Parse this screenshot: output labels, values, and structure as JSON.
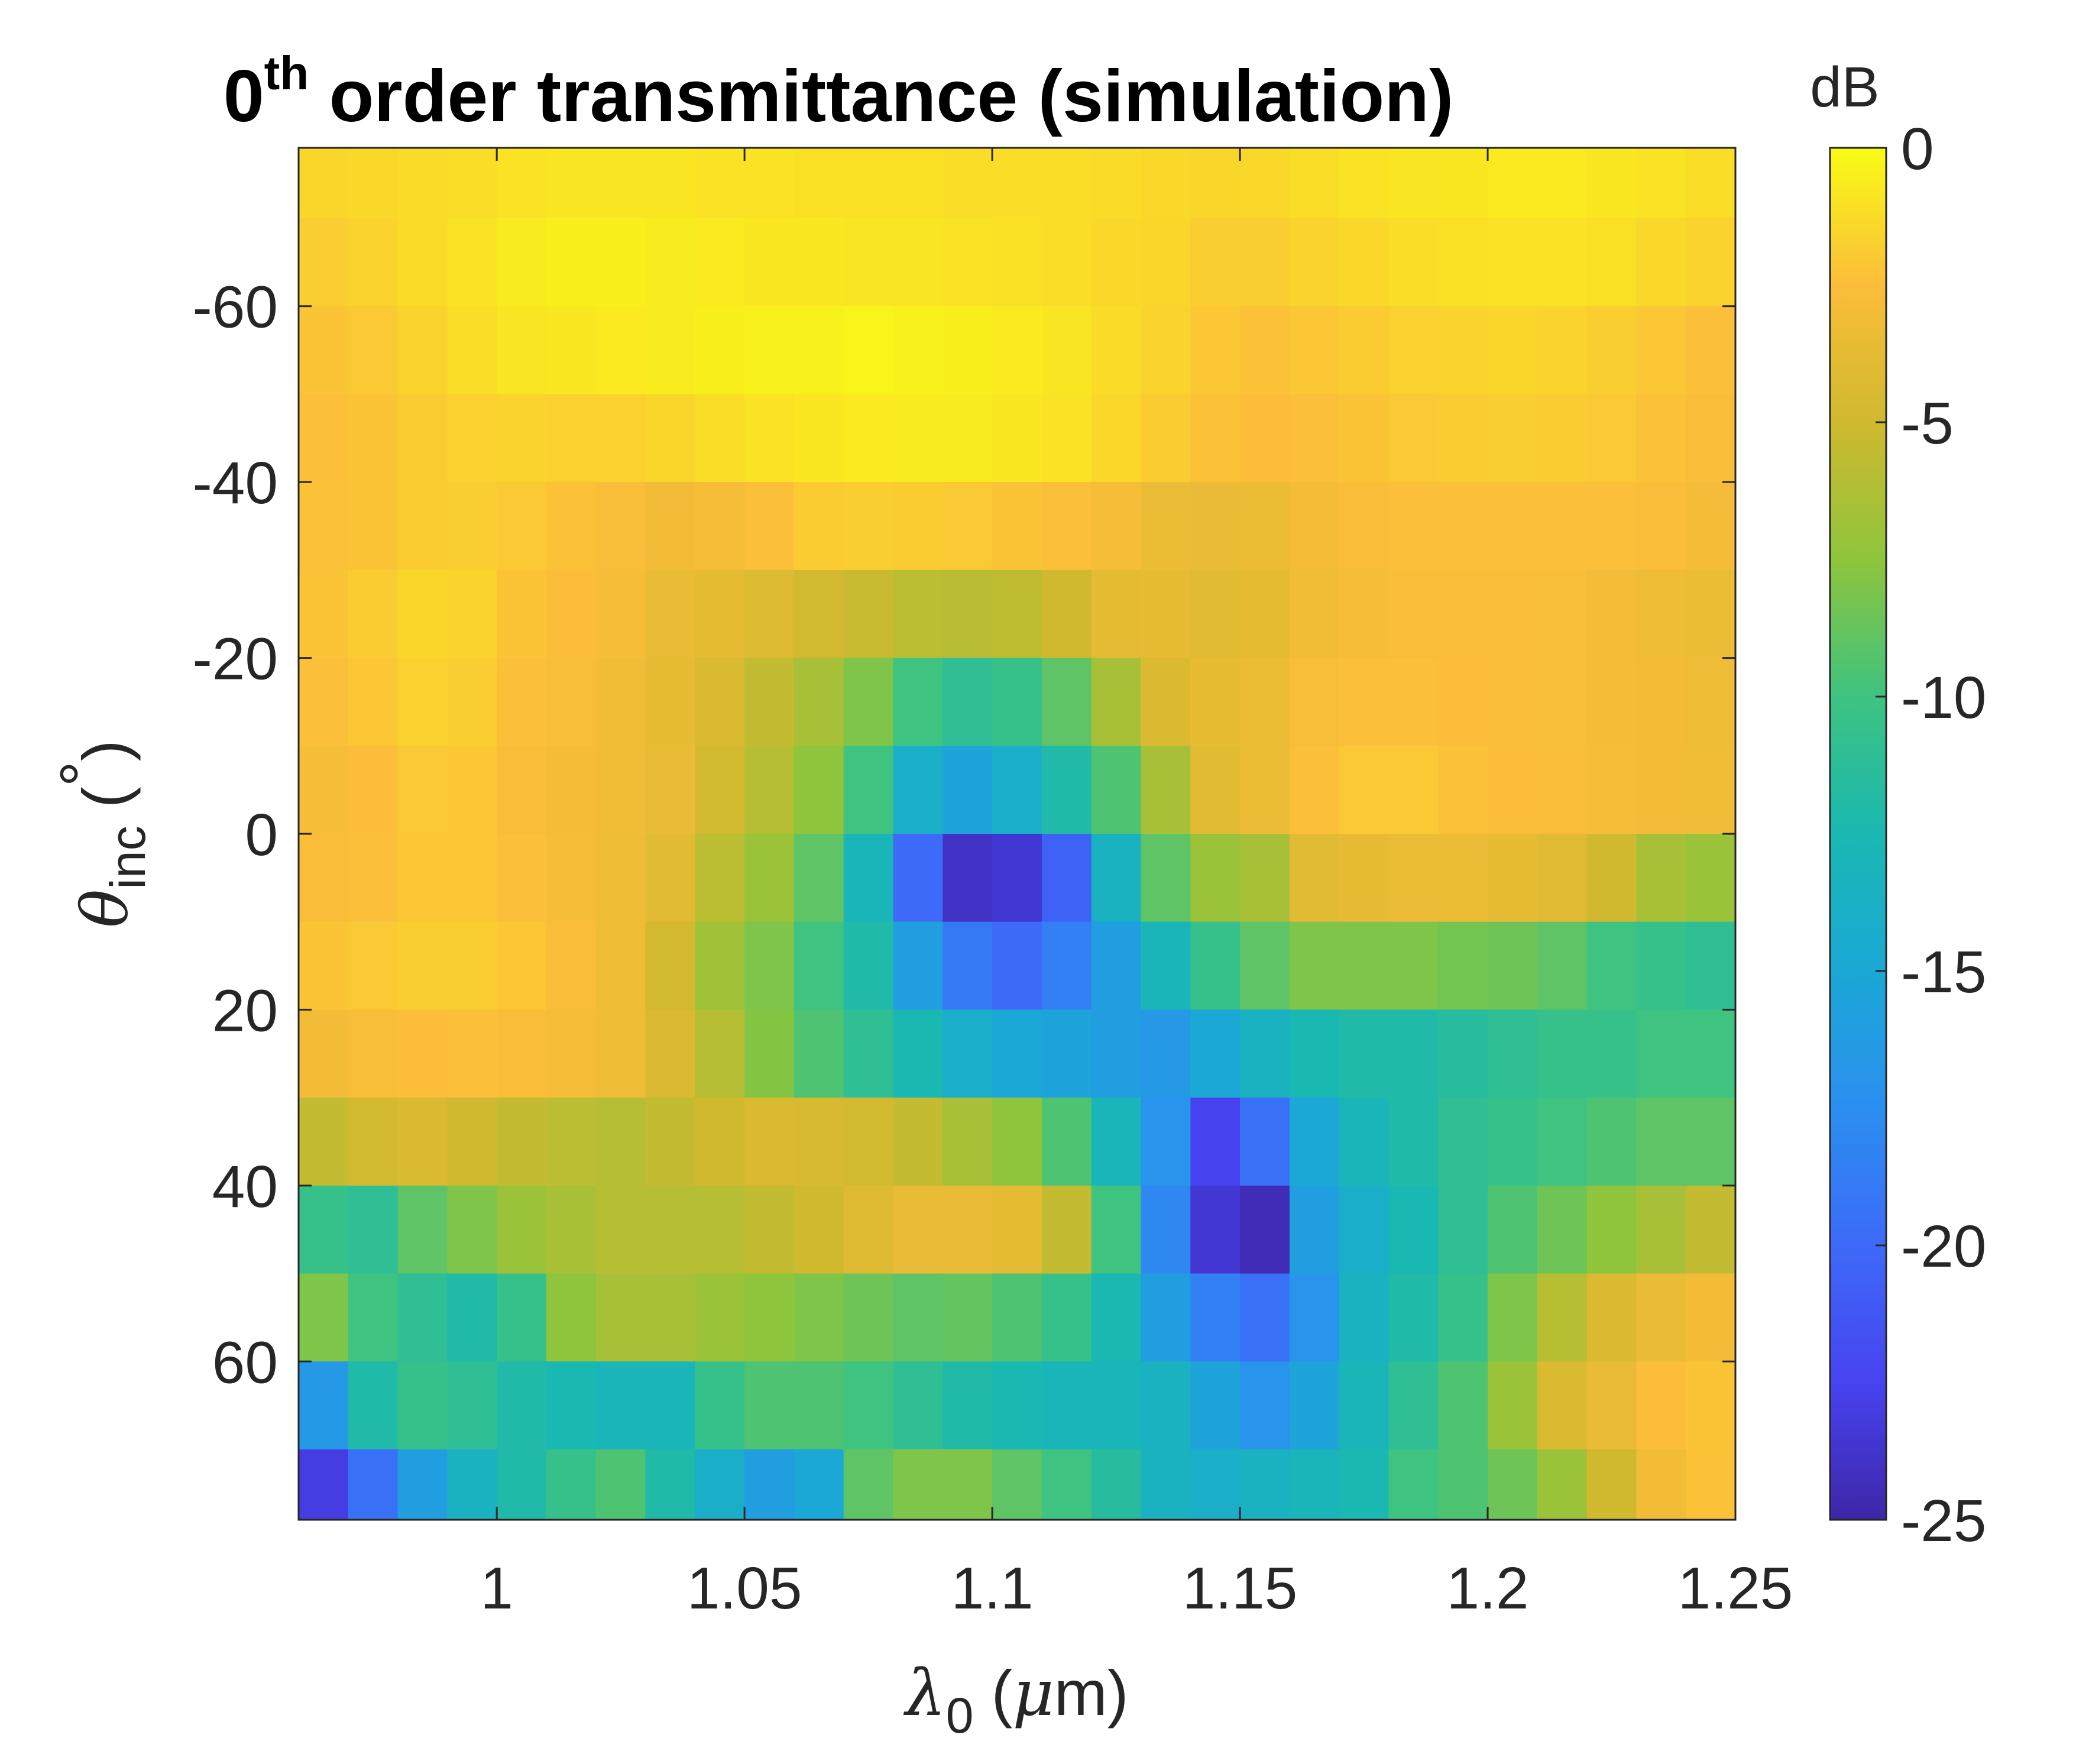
{
  "chart_data": {
    "type": "heatmap",
    "title": {
      "prefix": "0",
      "superscript": "th",
      "rest": " order transmittance (simulation)"
    },
    "xlabel": {
      "symbol": "λ",
      "subscript": "0",
      "unit_open": " (",
      "unit_symbol": "μ",
      "unit_rest": "m)"
    },
    "ylabel": {
      "symbol": "θ",
      "subscript": "inc",
      "unit_open": " (",
      "unit_symbol": "°",
      "unit_close": ")"
    },
    "colorbar_label": "dB",
    "xlim": [
      0.96,
      1.25
    ],
    "ylim": [
      -78,
      78
    ],
    "y_reversed": true,
    "clim": [
      -25,
      0
    ],
    "colormap": "parula",
    "x_ticks": [
      1.0,
      1.05,
      1.1,
      1.15,
      1.2,
      1.25
    ],
    "x_tick_labels": [
      "1",
      "1.05",
      "1.1",
      "1.15",
      "1.2",
      "1.25"
    ],
    "y_ticks": [
      -60,
      -40,
      -20,
      0,
      20,
      40,
      60
    ],
    "y_tick_labels": [
      "-60",
      "-40",
      "-20",
      "0",
      "20",
      "40",
      "60"
    ],
    "colorbar_ticks": [
      0,
      -5,
      -10,
      -15,
      -20,
      -25
    ],
    "colorbar_tick_labels": [
      "0",
      "-5",
      "-10",
      "-15",
      "-20",
      "-25"
    ],
    "grid": {
      "x": [
        0.965,
        0.975,
        0.985,
        0.995,
        1.005,
        1.015,
        1.025,
        1.035,
        1.045,
        1.055,
        1.065,
        1.075,
        1.085,
        1.095,
        1.105,
        1.115,
        1.125,
        1.135,
        1.145,
        1.155,
        1.165,
        1.175,
        1.185,
        1.195,
        1.205,
        1.215,
        1.225,
        1.235,
        1.245
      ],
      "y": [
        -75,
        -65,
        -55,
        -45,
        -35,
        -25,
        -15,
        -5,
        5,
        15,
        25,
        35,
        45,
        55,
        65,
        75
      ],
      "z": [
        [
          -1.5,
          -1.4,
          -1.3,
          -1.2,
          -1.0,
          -0.9,
          -0.9,
          -0.9,
          -1.0,
          -1.0,
          -1.1,
          -1.1,
          -1.1,
          -1.2,
          -1.2,
          -1.2,
          -1.3,
          -1.4,
          -1.5,
          -1.4,
          -1.2,
          -1.0,
          -0.9,
          -0.8,
          -0.7,
          -0.7,
          -0.8,
          -1.0,
          -1.2
        ],
        [
          -1.8,
          -1.6,
          -1.3,
          -1.0,
          -0.6,
          -0.5,
          -0.5,
          -0.6,
          -0.7,
          -0.8,
          -0.8,
          -0.9,
          -0.9,
          -1.0,
          -1.1,
          -1.2,
          -1.4,
          -1.5,
          -1.8,
          -1.8,
          -1.6,
          -1.4,
          -1.2,
          -1.1,
          -1.0,
          -1.0,
          -1.1,
          -1.4,
          -1.6
        ],
        [
          -2.2,
          -2.0,
          -1.6,
          -1.2,
          -0.9,
          -0.8,
          -0.7,
          -0.6,
          -0.5,
          -0.4,
          -0.4,
          -0.3,
          -0.4,
          -0.5,
          -0.7,
          -0.9,
          -1.3,
          -1.6,
          -2.1,
          -2.3,
          -2.1,
          -1.9,
          -1.7,
          -1.6,
          -1.5,
          -1.6,
          -1.8,
          -2.1,
          -2.4
        ],
        [
          -2.4,
          -2.2,
          -1.9,
          -1.7,
          -1.6,
          -1.7,
          -1.7,
          -1.5,
          -1.2,
          -1.0,
          -0.8,
          -0.7,
          -0.6,
          -0.6,
          -0.8,
          -1.0,
          -1.4,
          -1.9,
          -2.3,
          -2.5,
          -2.4,
          -2.2,
          -2.0,
          -1.9,
          -1.8,
          -1.9,
          -2.0,
          -2.3,
          -2.6
        ],
        [
          -2.3,
          -2.2,
          -1.9,
          -1.8,
          -2.0,
          -2.3,
          -2.7,
          -3.0,
          -2.8,
          -2.4,
          -1.9,
          -1.8,
          -1.9,
          -2.0,
          -2.2,
          -2.4,
          -2.8,
          -3.3,
          -3.5,
          -3.3,
          -2.9,
          -2.6,
          -2.4,
          -2.4,
          -2.4,
          -2.4,
          -2.4,
          -2.6,
          -2.9
        ],
        [
          -2.2,
          -1.9,
          -1.5,
          -1.6,
          -2.2,
          -2.5,
          -2.8,
          -3.5,
          -3.8,
          -4.3,
          -4.8,
          -5.3,
          -5.8,
          -5.9,
          -5.6,
          -5.0,
          -3.8,
          -3.6,
          -4.0,
          -3.8,
          -3.1,
          -2.8,
          -2.6,
          -2.6,
          -2.6,
          -2.7,
          -2.9,
          -3.2,
          -3.4
        ],
        [
          -2.4,
          -2.1,
          -1.7,
          -1.8,
          -2.4,
          -2.7,
          -3.1,
          -3.6,
          -4.5,
          -5.5,
          -6.5,
          -8.0,
          -10.0,
          -11.0,
          -10.5,
          -9.0,
          -6.5,
          -4.5,
          -3.6,
          -3.4,
          -2.7,
          -2.4,
          -2.4,
          -2.5,
          -2.6,
          -2.7,
          -2.9,
          -3.0,
          -3.2
        ],
        [
          -2.8,
          -2.5,
          -2.0,
          -2.1,
          -2.6,
          -2.9,
          -3.1,
          -3.5,
          -4.8,
          -6.0,
          -7.5,
          -10.0,
          -14.0,
          -15.5,
          -14.0,
          -12.0,
          -9.5,
          -6.5,
          -4.0,
          -3.3,
          -2.4,
          -2.0,
          -2.0,
          -2.3,
          -2.5,
          -2.6,
          -2.8,
          -3.0,
          -3.1
        ],
        [
          -2.6,
          -2.4,
          -2.1,
          -2.1,
          -2.4,
          -2.8,
          -3.2,
          -4.0,
          -5.8,
          -7.0,
          -9.0,
          -13.0,
          -20.0,
          -24.0,
          -23.5,
          -20.5,
          -13.5,
          -9.0,
          -7.0,
          -6.5,
          -4.0,
          -3.6,
          -3.3,
          -3.4,
          -3.6,
          -4.0,
          -5.0,
          -6.5,
          -7.0
        ],
        [
          -2.2,
          -2.0,
          -1.8,
          -1.8,
          -2.1,
          -2.6,
          -3.2,
          -4.8,
          -6.8,
          -8.0,
          -10.0,
          -12.0,
          -16.0,
          -19.0,
          -20.0,
          -18.5,
          -16.0,
          -13.0,
          -10.5,
          -9.0,
          -8.0,
          -8.0,
          -8.0,
          -8.3,
          -8.5,
          -9.0,
          -10.0,
          -10.5,
          -11.0
        ],
        [
          -3.0,
          -2.7,
          -2.5,
          -2.4,
          -2.6,
          -2.8,
          -3.2,
          -4.4,
          -6.0,
          -7.8,
          -9.5,
          -11.0,
          -12.5,
          -14.0,
          -15.0,
          -15.5,
          -16.0,
          -16.5,
          -15.0,
          -13.5,
          -12.5,
          -12.0,
          -12.0,
          -11.5,
          -11.0,
          -10.5,
          -10.5,
          -10.0,
          -10.0
        ],
        [
          -5.5,
          -4.8,
          -4.5,
          -5.0,
          -5.5,
          -5.8,
          -6.0,
          -5.5,
          -5.0,
          -4.5,
          -4.6,
          -4.8,
          -5.5,
          -6.5,
          -7.5,
          -9.5,
          -13.0,
          -17.0,
          -22.5,
          -19.5,
          -15.0,
          -13.0,
          -12.0,
          -11.0,
          -10.5,
          -10.0,
          -9.5,
          -9.0,
          -9.0
        ],
        [
          -10.5,
          -11.0,
          -9.0,
          -8.0,
          -7.0,
          -6.5,
          -6.0,
          -6.0,
          -6.0,
          -5.5,
          -5.0,
          -4.2,
          -3.5,
          -3.5,
          -3.8,
          -5.5,
          -10.0,
          -18.0,
          -23.5,
          -24.5,
          -16.0,
          -14.0,
          -12.5,
          -11.0,
          -9.5,
          -8.5,
          -7.5,
          -6.5,
          -5.5
        ],
        [
          -8.0,
          -10.0,
          -11.0,
          -12.0,
          -10.5,
          -7.5,
          -6.5,
          -6.5,
          -7.0,
          -7.5,
          -8.0,
          -8.5,
          -9.0,
          -8.8,
          -9.5,
          -10.5,
          -12.5,
          -16.0,
          -18.5,
          -19.5,
          -17.0,
          -13.5,
          -12.0,
          -10.5,
          -8.0,
          -6.0,
          -4.5,
          -3.5,
          -3.0
        ],
        [
          -16.5,
          -12.0,
          -10.5,
          -11.0,
          -12.0,
          -12.5,
          -13.0,
          -13.0,
          -10.5,
          -9.5,
          -9.5,
          -10.0,
          -11.0,
          -12.0,
          -12.5,
          -13.0,
          -13.0,
          -13.5,
          -15.5,
          -17.0,
          -15.5,
          -13.0,
          -11.0,
          -9.5,
          -7.0,
          -4.5,
          -3.5,
          -2.5,
          -2.2
        ],
        [
          -23.0,
          -19.5,
          -16.0,
          -13.5,
          -12.0,
          -10.5,
          -9.5,
          -12.0,
          -14.0,
          -16.0,
          -15.0,
          -9.0,
          -8.0,
          -8.0,
          -9.0,
          -10.0,
          -11.5,
          -13.5,
          -14.0,
          -13.5,
          -13.0,
          -12.5,
          -10.0,
          -9.5,
          -8.5,
          -7.0,
          -5.0,
          -3.0,
          -2.3
        ]
      ]
    }
  }
}
